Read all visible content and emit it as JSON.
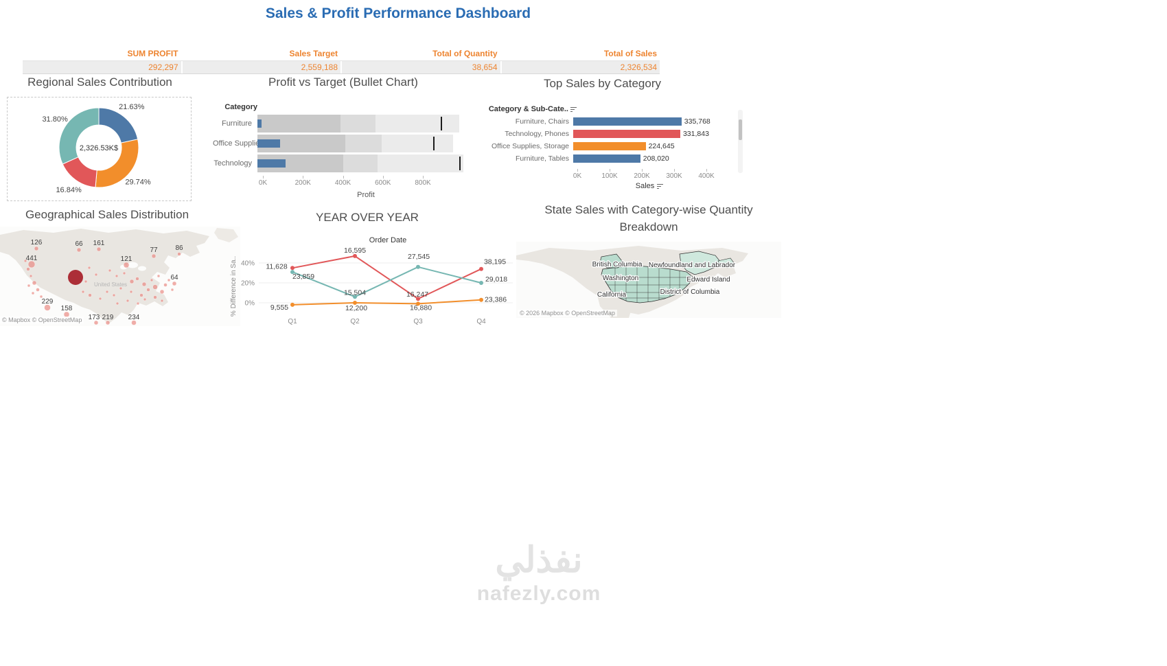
{
  "page": {
    "title": "Sales & Profit Performance Dashboard",
    "watermark_arabic": "نفذلي",
    "watermark_domain": "nafezly.com"
  },
  "kpi": {
    "columns": [
      {
        "label": "SUM PROFIT",
        "value": "292,297"
      },
      {
        "label": "Sales Target",
        "value": "2,559,188"
      },
      {
        "label": "Total of Quantity",
        "value": "38,654"
      },
      {
        "label": "Total of Sales",
        "value": "2,326,534"
      }
    ],
    "accent_color": "#ed8430"
  },
  "chart_data": [
    {
      "id": "regional_donut",
      "type": "pie",
      "title": "Regional Sales Contribution",
      "center_label": "2,326.53K$",
      "slices": [
        {
          "label": "21.63%",
          "pct": 21.63,
          "color": "#4e79a7"
        },
        {
          "label": "29.74%",
          "pct": 29.74,
          "color": "#f28e2b"
        },
        {
          "label": "16.84%",
          "pct": 16.84,
          "color": "#e15759"
        },
        {
          "label": "31.80%",
          "pct": 31.8,
          "color": "#76b7b2"
        }
      ]
    },
    {
      "id": "bullet",
      "type": "bar",
      "variant": "bullet",
      "title": "Profit vs Target (Bullet Chart)",
      "col_header": "Category",
      "xlabel": "Profit",
      "x_ticks": [
        "0K",
        "200K",
        "400K",
        "600K",
        "800K"
      ],
      "x_max_k": 1030,
      "band_colors": [
        "#c9c9c9",
        "#dcdcdc",
        "#ebebeb"
      ],
      "bar_color": "#4e79a7",
      "rows": [
        {
          "category": "Furniture",
          "profit_k": 20,
          "target_k": 915,
          "bands_k": [
            415,
            590,
            1010
          ]
        },
        {
          "category": "Office Supplies",
          "profit_k": 112,
          "target_k": 880,
          "bands_k": [
            440,
            620,
            980
          ]
        },
        {
          "category": "Technology",
          "profit_k": 140,
          "target_k": 1010,
          "bands_k": [
            430,
            600,
            1030
          ]
        }
      ]
    },
    {
      "id": "top_sales",
      "type": "bar",
      "title": "Top Sales by Category",
      "col_header": "Category & Sub-Cate..",
      "xlabel": "Sales",
      "x_ticks": [
        "0K",
        "100K",
        "200K",
        "300K",
        "400K"
      ],
      "x_max": 425000,
      "rows": [
        {
          "label": "Furniture, Chairs",
          "value": 335768,
          "display": "335,768",
          "color": "#4e79a7"
        },
        {
          "label": "Technology, Phones",
          "value": 331843,
          "display": "331,843",
          "color": "#e15759"
        },
        {
          "label": "Office Supplies, Storage",
          "value": 224645,
          "display": "224,645",
          "color": "#f28e2b"
        },
        {
          "label": "Furniture, Tables",
          "value": 208020,
          "display": "208,020",
          "color": "#4e79a7"
        }
      ]
    },
    {
      "id": "yoy",
      "type": "line",
      "title": "YEAR OVER YEAR",
      "xlabel_top": "Order Date",
      "ylabel": "% Difference in Sa..",
      "x": [
        "Q1",
        "Q2",
        "Q3",
        "Q4"
      ],
      "y_ticks": [
        "40%",
        "20%",
        "0%"
      ],
      "series": [
        {
          "name": "red",
          "color": "#e15759",
          "pct": [
            35,
            47,
            4,
            34
          ],
          "labels": [
            "11,628",
            "16,595",
            "16,247",
            "38,195"
          ],
          "label_offsets": [
            [
              -23,
              1
            ],
            [
              0,
              -5
            ],
            [
              -1,
              -3
            ],
            [
              20,
              -7
            ]
          ]
        },
        {
          "name": "teal",
          "color": "#76b7b2",
          "pct": [
            31,
            6,
            36,
            20
          ],
          "labels": [
            "23,859",
            "15,504",
            "27,545",
            "29,018"
          ],
          "label_offsets": [
            [
              16,
              10
            ],
            [
              0,
              -3
            ],
            [
              1,
              -12
            ],
            [
              22,
              -2
            ]
          ]
        },
        {
          "name": "orange",
          "color": "#f28e2b",
          "pct": [
            -2,
            0,
            -1,
            3
          ],
          "labels": [
            "9,555",
            "12,200",
            "16,880",
            "23,386"
          ],
          "label_offsets": [
            [
              -19,
              7
            ],
            [
              2,
              11
            ],
            [
              4,
              9
            ],
            [
              21,
              3
            ]
          ]
        }
      ]
    },
    {
      "id": "geo_map",
      "type": "scatter",
      "variant": "bubble-map",
      "title": "Geographical Sales Distribution",
      "map_label": "United States",
      "attribution": "© Mapbox © OpenStreetMap",
      "bubble_color": "#e8837b",
      "big_bubble_color": "#a61e28",
      "labeled_points": [
        {
          "label": "126",
          "x": 53,
          "y": 26
        },
        {
          "label": "66",
          "x": 115,
          "y": 28
        },
        {
          "label": "161",
          "x": 144,
          "y": 27
        },
        {
          "label": "441",
          "x": 46,
          "y": 49
        },
        {
          "label": "121",
          "x": 184,
          "y": 50
        },
        {
          "label": "77",
          "x": 224,
          "y": 37
        },
        {
          "label": "86",
          "x": 261,
          "y": 34
        },
        {
          "label": "64",
          "x": 254,
          "y": 77
        },
        {
          "label": "229",
          "x": 69,
          "y": 112
        },
        {
          "label": "158",
          "x": 97,
          "y": 122
        },
        {
          "label": "173",
          "x": 137,
          "y": 135
        },
        {
          "label": "219",
          "x": 157,
          "y": 135
        },
        {
          "label": "234",
          "x": 195,
          "y": 135
        }
      ],
      "big_bubble": {
        "x": 110,
        "y": 74,
        "r": 11
      },
      "dots": [
        [
          53,
          32,
          3
        ],
        [
          115,
          34,
          3
        ],
        [
          144,
          33,
          3
        ],
        [
          46,
          55,
          5
        ],
        [
          184,
          56,
          4
        ],
        [
          224,
          43,
          3
        ],
        [
          261,
          40,
          2.5
        ],
        [
          254,
          83,
          3
        ],
        [
          69,
          118,
          4.5
        ],
        [
          97,
          128,
          4
        ],
        [
          140,
          140,
          3
        ],
        [
          157,
          140,
          3
        ],
        [
          195,
          140,
          3.5
        ],
        [
          160,
          64,
          2
        ],
        [
          170,
          72,
          2
        ],
        [
          181,
          68,
          2
        ],
        [
          192,
          80,
          3
        ],
        [
          200,
          76,
          2.5
        ],
        [
          210,
          84,
          3
        ],
        [
          216,
          92,
          2.5
        ],
        [
          221,
          78,
          2
        ],
        [
          226,
          88,
          3.5
        ],
        [
          231,
          72,
          2
        ],
        [
          236,
          95,
          3
        ],
        [
          241,
          85,
          2.5
        ],
        [
          246,
          78,
          2
        ],
        [
          251,
          92,
          2
        ],
        [
          206,
          100,
          2.5
        ],
        [
          191,
          95,
          2
        ],
        [
          176,
          90,
          2
        ],
        [
          166,
          100,
          2
        ],
        [
          156,
          95,
          2
        ],
        [
          211,
          106,
          2
        ],
        [
          226,
          103,
          2.5
        ],
        [
          236,
          108,
          2
        ],
        [
          201,
          112,
          2
        ],
        [
          186,
          108,
          2
        ],
        [
          171,
          112,
          2
        ],
        [
          146,
          105,
          2
        ],
        [
          131,
          100,
          2.5
        ],
        [
          121,
          95,
          2
        ],
        [
          37,
          50,
          2
        ],
        [
          41,
          62,
          2.5
        ],
        [
          45,
          72,
          2
        ],
        [
          50,
          82,
          3
        ],
        [
          55,
          92,
          2.5
        ],
        [
          60,
          102,
          2
        ],
        [
          48,
          97,
          2
        ],
        [
          42,
          86,
          2
        ],
        [
          130,
          60,
          2
        ],
        [
          140,
          70,
          2
        ],
        [
          125,
          80,
          2
        ]
      ]
    },
    {
      "id": "state_map",
      "type": "heatmap",
      "variant": "choropleth-map",
      "title": "State Sales with Category-wise Quantity Breakdown",
      "attribution": "© 2026 Mapbox © OpenStreetMap",
      "fill_colors": [
        "#b9dcce",
        "#cfe8dd"
      ],
      "region_labels": [
        {
          "label": "British Columbia",
          "x": 147,
          "y": 36
        },
        {
          "label": "Newfoundland and Labrador",
          "x": 256,
          "y": 37
        },
        {
          "label": "Washington",
          "x": 152,
          "y": 56
        },
        {
          "label": "Edward Island",
          "x": 280,
          "y": 58
        },
        {
          "label": "California",
          "x": 139,
          "y": 80
        },
        {
          "label": "District of Columbia",
          "x": 253,
          "y": 76
        }
      ]
    }
  ]
}
